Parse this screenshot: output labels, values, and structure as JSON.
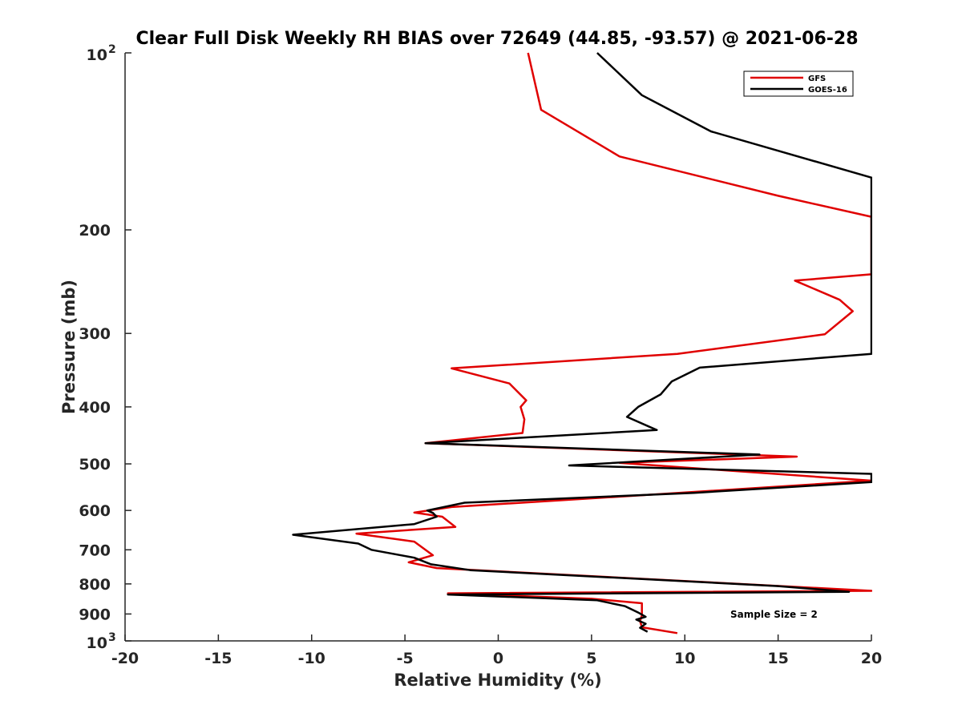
{
  "chart_data": {
    "type": "line",
    "title": "Clear Full Disk Weekly RH BIAS over 72649 (44.85, -93.57) @ 2021-06-28",
    "xlabel": "Relative Humidity (%)",
    "ylabel": "Pressure (mb)",
    "xlim": [
      -20,
      20
    ],
    "ylim": [
      100,
      1000
    ],
    "yscale": "log",
    "y_reversed": true,
    "grid": false,
    "legend_position": "top-right",
    "x_ticks": [
      "-20",
      "-15",
      "-10",
      "-5",
      "0",
      "5",
      "10",
      "15",
      "20"
    ],
    "y_ticks": [
      {
        "value": 100,
        "base": "10",
        "exp": "2"
      },
      {
        "value": 200,
        "base": "200",
        "exp": ""
      },
      {
        "value": 300,
        "base": "300",
        "exp": ""
      },
      {
        "value": 400,
        "base": "400",
        "exp": ""
      },
      {
        "value": 500,
        "base": "500",
        "exp": ""
      },
      {
        "value": 600,
        "base": "600",
        "exp": ""
      },
      {
        "value": 700,
        "base": "700",
        "exp": ""
      },
      {
        "value": 800,
        "base": "800",
        "exp": ""
      },
      {
        "value": 900,
        "base": "900",
        "exp": ""
      },
      {
        "value": 1000,
        "base": "10",
        "exp": "3"
      }
    ],
    "annotation": "Sample Size = 2",
    "series": [
      {
        "name": "GFS",
        "color": "#e00000",
        "points": [
          [
            1.6,
            100
          ],
          [
            2.3,
            125
          ],
          [
            6.5,
            150
          ],
          [
            15,
            175
          ],
          [
            20,
            190
          ],
          [
            20,
            238
          ],
          [
            15.9,
            244
          ],
          [
            18.3,
            263
          ],
          [
            19,
            275
          ],
          [
            17.5,
            301
          ],
          [
            9.6,
            325
          ],
          [
            -2.5,
            344
          ],
          [
            0.6,
            365
          ],
          [
            1.5,
            390
          ],
          [
            1.2,
            400
          ],
          [
            1.4,
            420
          ],
          [
            1.3,
            443
          ],
          [
            -3.9,
            461
          ],
          [
            16,
            486
          ],
          [
            6.5,
            498
          ],
          [
            20,
            534
          ],
          [
            9,
            562
          ],
          [
            -2.5,
            592
          ],
          [
            -4.5,
            605
          ],
          [
            -3,
            615
          ],
          [
            -2.3,
            640
          ],
          [
            -7.6,
            657
          ],
          [
            -4.5,
            678
          ],
          [
            -3.5,
            715
          ],
          [
            -4.8,
            735
          ],
          [
            -3.3,
            752
          ],
          [
            20,
            822
          ],
          [
            -2.7,
            830
          ],
          [
            5,
            848
          ],
          [
            7.7,
            863
          ],
          [
            7.7,
            905
          ],
          [
            7.6,
            925
          ],
          [
            7.7,
            948
          ],
          [
            9.6,
            970
          ]
        ]
      },
      {
        "name": "GOES-16",
        "color": "#000000",
        "points": [
          [
            5.3,
            100
          ],
          [
            7.7,
            118
          ],
          [
            11.4,
            136
          ],
          [
            20,
            163
          ],
          [
            20,
            325
          ],
          [
            10.8,
            343
          ],
          [
            9.3,
            362
          ],
          [
            8.7,
            381
          ],
          [
            7.5,
            400
          ],
          [
            6.9,
            416
          ],
          [
            8.5,
            438
          ],
          [
            -3.9,
            461
          ],
          [
            14,
            482
          ],
          [
            3.8,
            503
          ],
          [
            20,
            520
          ],
          [
            20,
            537
          ],
          [
            10.5,
            560
          ],
          [
            -1.8,
            582
          ],
          [
            -3.8,
            600
          ],
          [
            -3.5,
            606
          ],
          [
            -3.3,
            615
          ],
          [
            -4.5,
            633
          ],
          [
            -11,
            660
          ],
          [
            -7.5,
            683
          ],
          [
            -6.8,
            700
          ],
          [
            -4.5,
            722
          ],
          [
            -3.6,
            741
          ],
          [
            -1.5,
            758
          ],
          [
            15,
            807
          ],
          [
            18.8,
            825
          ],
          [
            -2.7,
            834
          ],
          [
            5.3,
            853
          ],
          [
            6.8,
            873
          ],
          [
            7.5,
            895
          ],
          [
            7.9,
            910
          ],
          [
            7.4,
            920
          ],
          [
            7.9,
            935
          ],
          [
            7.6,
            950
          ],
          [
            8,
            965
          ]
        ]
      }
    ]
  }
}
